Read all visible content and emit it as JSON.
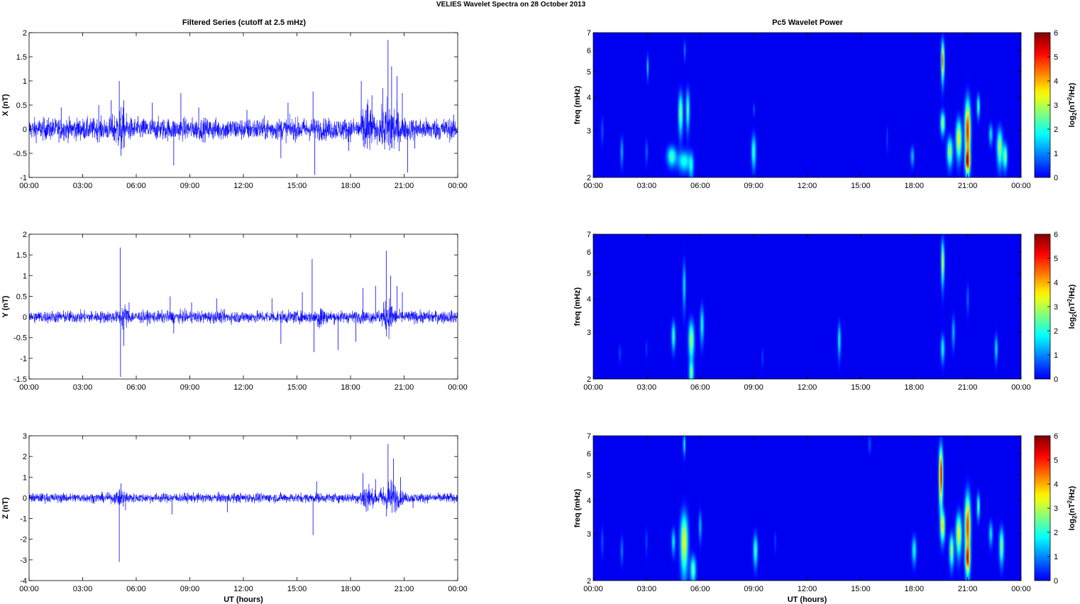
{
  "figure": {
    "suptitle": "VELIES Wavelet Spectra on 28 October   2013",
    "left_title": "Filtered Series (cutoff at 2.5 mHz)",
    "right_title": "Pc5 Wavelet Power",
    "xlabel": "UT (hours)",
    "colorbar_label": "log2(nT2/Hz)"
  },
  "chart_data": [
    {
      "type": "line",
      "panel": "x-series",
      "ylabel": "X (nT)",
      "ylim": [
        -1,
        2
      ],
      "yticks": [
        "2",
        "1.5",
        "1",
        "0.5",
        "0",
        "-0.5",
        "-1"
      ],
      "xlim": [
        0,
        24
      ],
      "xticks": [
        "00:00",
        "03:00",
        "06:00",
        "09:00",
        "12:00",
        "15:00",
        "18:00",
        "21:00",
        "00:00"
      ],
      "color": "#0000ff",
      "noise_amp": 0.2,
      "spikes": [
        [
          1.8,
          0.45
        ],
        [
          3.9,
          0.5
        ],
        [
          4.6,
          0.6
        ],
        [
          5.05,
          1.0
        ],
        [
          5.15,
          -0.55
        ],
        [
          5.3,
          0.6
        ],
        [
          6.9,
          0.55
        ],
        [
          8.1,
          -0.75
        ],
        [
          8.5,
          0.75
        ],
        [
          9.5,
          0.45
        ],
        [
          12.2,
          0.4
        ],
        [
          14.1,
          -0.6
        ],
        [
          14.5,
          0.55
        ],
        [
          15.9,
          0.78
        ],
        [
          16.0,
          -0.95
        ],
        [
          17.9,
          -0.45
        ],
        [
          18.6,
          1.0
        ],
        [
          19.2,
          0.7
        ],
        [
          19.8,
          0.85
        ],
        [
          20.1,
          1.85
        ],
        [
          20.3,
          1.3
        ],
        [
          20.6,
          1.1
        ],
        [
          20.9,
          0.75
        ],
        [
          21.2,
          -0.9
        ],
        [
          21.6,
          -0.4
        ]
      ],
      "bursts": [
        [
          5.1,
          0.5,
          0.35
        ],
        [
          18.9,
          0.9,
          0.25
        ],
        [
          20.2,
          0.9,
          0.45
        ]
      ],
      "grid": false
    },
    {
      "type": "line",
      "panel": "y-series",
      "ylabel": "Y (nT)",
      "ylim": [
        -1.5,
        2
      ],
      "yticks": [
        "2",
        "1.5",
        "1",
        "0.5",
        "0",
        "-0.5",
        "-1",
        "-1.5"
      ],
      "xlim": [
        0,
        24
      ],
      "xticks": [
        "00:00",
        "03:00",
        "06:00",
        "09:00",
        "12:00",
        "15:00",
        "18:00",
        "21:00",
        "00:00"
      ],
      "color": "#0000ff",
      "noise_amp": 0.13,
      "spikes": [
        [
          5.1,
          1.68
        ],
        [
          5.12,
          -1.45
        ],
        [
          5.3,
          -0.7
        ],
        [
          5.6,
          0.35
        ],
        [
          7.9,
          0.5
        ],
        [
          8.1,
          -0.4
        ],
        [
          9.1,
          0.35
        ],
        [
          10.5,
          0.45
        ],
        [
          13.6,
          0.45
        ],
        [
          14.1,
          -0.65
        ],
        [
          15.3,
          0.6
        ],
        [
          15.85,
          1.4
        ],
        [
          15.95,
          -0.85
        ],
        [
          17.3,
          -0.8
        ],
        [
          18.3,
          -0.6
        ],
        [
          18.7,
          0.7
        ],
        [
          19.4,
          0.75
        ],
        [
          20.0,
          1.6
        ],
        [
          20.25,
          1.0
        ],
        [
          20.6,
          0.75
        ],
        [
          20.9,
          0.6
        ]
      ],
      "bursts": [
        [
          5.3,
          0.6,
          0.2
        ],
        [
          16.3,
          0.8,
          0.18
        ],
        [
          20.1,
          1.0,
          0.3
        ]
      ],
      "grid": false
    },
    {
      "type": "line",
      "panel": "z-series",
      "ylabel": "Z (nT)",
      "ylim": [
        -4,
        3
      ],
      "yticks": [
        "3",
        "2",
        "1",
        "0",
        "-1",
        "-2",
        "-3",
        "-4"
      ],
      "xlim": [
        0,
        24
      ],
      "xticks": [
        "00:00",
        "03:00",
        "06:00",
        "09:00",
        "12:00",
        "15:00",
        "18:00",
        "21:00",
        "00:00"
      ],
      "color": "#0000ff",
      "xlabel": "UT (hours)",
      "noise_amp": 0.2,
      "spikes": [
        [
          5.05,
          -3.1
        ],
        [
          5.15,
          0.7
        ],
        [
          5.4,
          -0.6
        ],
        [
          8.0,
          -0.8
        ],
        [
          11.1,
          -0.7
        ],
        [
          15.9,
          -1.8
        ],
        [
          16.1,
          0.8
        ],
        [
          18.7,
          1.2
        ],
        [
          19.4,
          0.9
        ],
        [
          20.1,
          2.6
        ],
        [
          20.4,
          1.9
        ],
        [
          20.8,
          1.0
        ],
        [
          21.5,
          -0.5
        ]
      ],
      "bursts": [
        [
          5.2,
          0.45,
          0.35
        ],
        [
          18.9,
          1.2,
          0.3
        ],
        [
          20.2,
          1.4,
          0.5
        ]
      ],
      "grid": false
    },
    {
      "type": "heatmap",
      "panel": "x-power",
      "ylabel": "freq (mHz)",
      "yscale": "log",
      "ylim": [
        2,
        7
      ],
      "yticks": [
        "7",
        "6",
        "5",
        "4",
        "3",
        "2"
      ],
      "xlim": [
        0,
        24
      ],
      "xticks": [
        "00:00",
        "03:00",
        "06:00",
        "09:00",
        "12:00",
        "15:00",
        "18:00",
        "21:00",
        "00:00"
      ],
      "colormap": "jet",
      "clim": [
        0,
        6
      ],
      "colorbar_ticks": [
        "6",
        "5",
        "4",
        "3",
        "2",
        "1",
        "0"
      ],
      "colorbar_label": "log2(nT2/Hz)",
      "blobs": [
        [
          0.5,
          3.0,
          0.06,
          0.35,
          0.8
        ],
        [
          1.6,
          2.5,
          0.07,
          0.3,
          1.5
        ],
        [
          3.05,
          5.2,
          0.05,
          0.5,
          1.8
        ],
        [
          3.0,
          2.5,
          0.06,
          0.25,
          1.0
        ],
        [
          4.4,
          2.4,
          0.25,
          0.2,
          2.3
        ],
        [
          4.9,
          3.5,
          0.12,
          0.6,
          2.8
        ],
        [
          5.3,
          3.6,
          0.1,
          0.6,
          2.4
        ],
        [
          5.1,
          2.3,
          0.35,
          0.2,
          2.0
        ],
        [
          5.5,
          2.2,
          0.12,
          0.25,
          1.6
        ],
        [
          5.15,
          6.0,
          0.04,
          0.5,
          1.5
        ],
        [
          9.0,
          2.5,
          0.12,
          0.35,
          2.3
        ],
        [
          9.0,
          3.6,
          0.04,
          0.2,
          1.0
        ],
        [
          16.5,
          2.8,
          0.05,
          0.3,
          0.6
        ],
        [
          17.9,
          2.4,
          0.1,
          0.2,
          1.5
        ],
        [
          19.6,
          5.5,
          0.08,
          0.9,
          4.5
        ],
        [
          19.6,
          3.2,
          0.12,
          0.3,
          3.0
        ],
        [
          20.0,
          2.5,
          0.15,
          0.3,
          3.0
        ],
        [
          20.5,
          2.8,
          0.15,
          0.45,
          3.6
        ],
        [
          21.0,
          3.0,
          0.15,
          0.8,
          5.2
        ],
        [
          21.0,
          2.3,
          0.12,
          0.2,
          4.0
        ],
        [
          21.6,
          3.7,
          0.08,
          0.35,
          2.5
        ],
        [
          22.3,
          2.9,
          0.1,
          0.25,
          1.8
        ],
        [
          22.8,
          2.6,
          0.15,
          0.4,
          3.0
        ],
        [
          23.1,
          2.4,
          0.12,
          0.25,
          2.8
        ]
      ]
    },
    {
      "type": "heatmap",
      "panel": "y-power",
      "ylabel": "freq (mHz)",
      "yscale": "log",
      "ylim": [
        2,
        7
      ],
      "yticks": [
        "7",
        "6",
        "5",
        "4",
        "3",
        "2"
      ],
      "xlim": [
        0,
        24
      ],
      "xticks": [
        "00:00",
        "03:00",
        "06:00",
        "09:00",
        "12:00",
        "15:00",
        "18:00",
        "21:00",
        "00:00"
      ],
      "colormap": "jet",
      "clim": [
        0,
        6
      ],
      "colorbar_ticks": [
        "6",
        "5",
        "4",
        "3",
        "2",
        "1",
        "0"
      ],
      "colorbar_label": "log2(nT2/Hz)",
      "blobs": [
        [
          1.5,
          2.5,
          0.05,
          0.2,
          0.8
        ],
        [
          3.0,
          2.6,
          0.05,
          0.2,
          0.6
        ],
        [
          4.5,
          2.9,
          0.1,
          0.35,
          2.3
        ],
        [
          5.1,
          4.5,
          0.08,
          0.9,
          1.8
        ],
        [
          5.5,
          2.8,
          0.15,
          0.45,
          3.0
        ],
        [
          5.5,
          2.1,
          0.12,
          0.2,
          2.5
        ],
        [
          6.1,
          3.2,
          0.1,
          0.5,
          2.0
        ],
        [
          9.5,
          2.4,
          0.05,
          0.2,
          0.6
        ],
        [
          13.8,
          2.8,
          0.08,
          0.4,
          2.0
        ],
        [
          19.6,
          5.5,
          0.08,
          1.0,
          3.5
        ],
        [
          19.6,
          2.6,
          0.1,
          0.3,
          2.0
        ],
        [
          20.2,
          3.0,
          0.08,
          0.4,
          1.5
        ],
        [
          21.0,
          4.0,
          0.06,
          0.5,
          1.0
        ],
        [
          22.6,
          2.6,
          0.08,
          0.3,
          1.8
        ]
      ]
    },
    {
      "type": "heatmap",
      "panel": "z-power",
      "ylabel": "freq (mHz)",
      "yscale": "log",
      "ylim": [
        2,
        7
      ],
      "yticks": [
        "7",
        "6",
        "5",
        "4",
        "3",
        "2"
      ],
      "xlim": [
        0,
        24
      ],
      "xticks": [
        "00:00",
        "03:00",
        "06:00",
        "09:00",
        "12:00",
        "15:00",
        "18:00",
        "21:00",
        "00:00"
      ],
      "colormap": "jet",
      "clim": [
        0,
        6
      ],
      "colorbar_ticks": [
        "6",
        "5",
        "4",
        "3",
        "2",
        "1",
        "0"
      ],
      "colorbar_label": "log2(nT2/Hz)",
      "xlabel": "UT (hours)",
      "blobs": [
        [
          0.5,
          2.8,
          0.06,
          0.35,
          0.8
        ],
        [
          1.6,
          2.6,
          0.06,
          0.3,
          1.2
        ],
        [
          3.0,
          2.8,
          0.05,
          0.3,
          0.8
        ],
        [
          4.5,
          2.8,
          0.1,
          0.3,
          1.8
        ],
        [
          5.1,
          2.8,
          0.2,
          0.7,
          3.5
        ],
        [
          5.1,
          6.5,
          0.05,
          0.6,
          2.5
        ],
        [
          5.6,
          2.2,
          0.15,
          0.25,
          2.5
        ],
        [
          6.0,
          3.2,
          0.08,
          0.4,
          1.5
        ],
        [
          9.1,
          2.6,
          0.12,
          0.35,
          2.3
        ],
        [
          10.2,
          2.8,
          0.05,
          0.25,
          0.6
        ],
        [
          15.5,
          6.5,
          0.04,
          0.5,
          1.5
        ],
        [
          18.0,
          2.6,
          0.12,
          0.3,
          2.0
        ],
        [
          19.5,
          5.0,
          0.1,
          1.2,
          5.5
        ],
        [
          19.6,
          3.2,
          0.12,
          0.4,
          3.5
        ],
        [
          20.1,
          2.6,
          0.12,
          0.35,
          3.0
        ],
        [
          20.5,
          3.0,
          0.15,
          0.5,
          3.6
        ],
        [
          21.0,
          3.2,
          0.15,
          0.9,
          5.0
        ],
        [
          21.0,
          2.4,
          0.12,
          0.25,
          3.5
        ],
        [
          21.6,
          3.8,
          0.08,
          0.4,
          2.6
        ],
        [
          22.3,
          3.0,
          0.1,
          0.3,
          1.8
        ],
        [
          22.9,
          2.7,
          0.12,
          0.4,
          2.8
        ]
      ]
    }
  ]
}
